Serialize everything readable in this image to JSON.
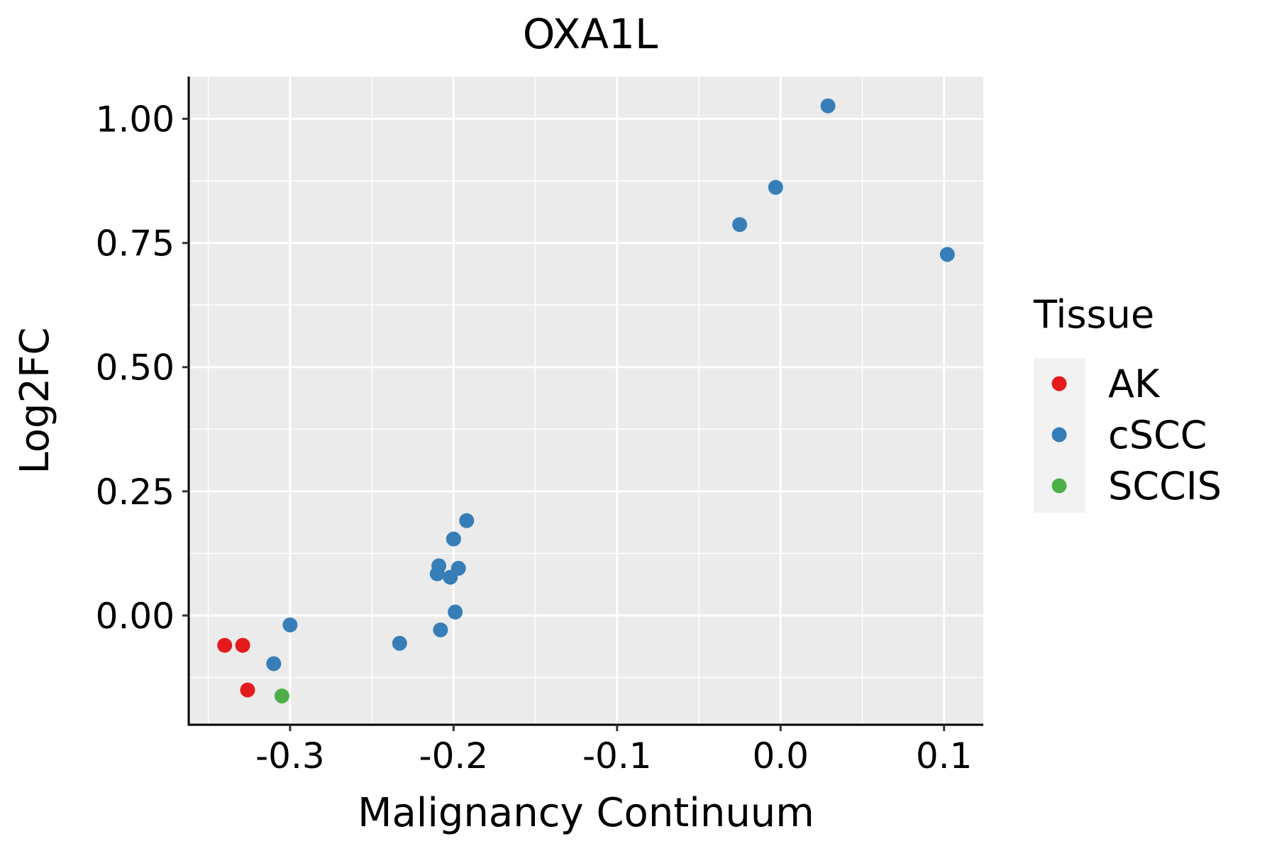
{
  "chart_data": {
    "type": "scatter",
    "title": "OXA1L",
    "xlabel": "Malignancy Continuum",
    "ylabel": "Log2FC",
    "xlim": [
      -0.362,
      0.124
    ],
    "ylim": [
      -0.22,
      1.085
    ],
    "x_ticks": [
      -0.3,
      -0.2,
      -0.1,
      0.0,
      0.1
    ],
    "x_tick_labels": [
      "-0.3",
      "-0.2",
      "-0.1",
      "0.0",
      "0.1"
    ],
    "y_ticks": [
      0.0,
      0.25,
      0.5,
      0.75,
      1.0
    ],
    "y_tick_labels": [
      "0.00",
      "0.25",
      "0.50",
      "0.75",
      "1.00"
    ],
    "grid": true,
    "legend_position": "right",
    "legend_title": "Tissue",
    "series": [
      {
        "name": "AK",
        "color": "#E41A1C",
        "points": [
          {
            "x": -0.34,
            "y": -0.06
          },
          {
            "x": -0.329,
            "y": -0.06
          },
          {
            "x": -0.326,
            "y": -0.15
          }
        ]
      },
      {
        "name": "cSCC",
        "color": "#377EB8",
        "points": [
          {
            "x": -0.31,
            "y": -0.097
          },
          {
            "x": -0.3,
            "y": -0.019
          },
          {
            "x": -0.233,
            "y": -0.056
          },
          {
            "x": -0.21,
            "y": 0.084
          },
          {
            "x": -0.209,
            "y": 0.1
          },
          {
            "x": -0.208,
            "y": -0.029
          },
          {
            "x": -0.202,
            "y": 0.077
          },
          {
            "x": -0.2,
            "y": 0.154
          },
          {
            "x": -0.199,
            "y": 0.007
          },
          {
            "x": -0.197,
            "y": 0.095
          },
          {
            "x": -0.192,
            "y": 0.191
          },
          {
            "x": -0.025,
            "y": 0.787
          },
          {
            "x": -0.003,
            "y": 0.862
          },
          {
            "x": 0.029,
            "y": 1.026
          },
          {
            "x": 0.102,
            "y": 0.727
          }
        ]
      },
      {
        "name": "SCCIS",
        "color": "#4DAF4A",
        "points": [
          {
            "x": -0.305,
            "y": -0.162
          }
        ]
      }
    ]
  }
}
